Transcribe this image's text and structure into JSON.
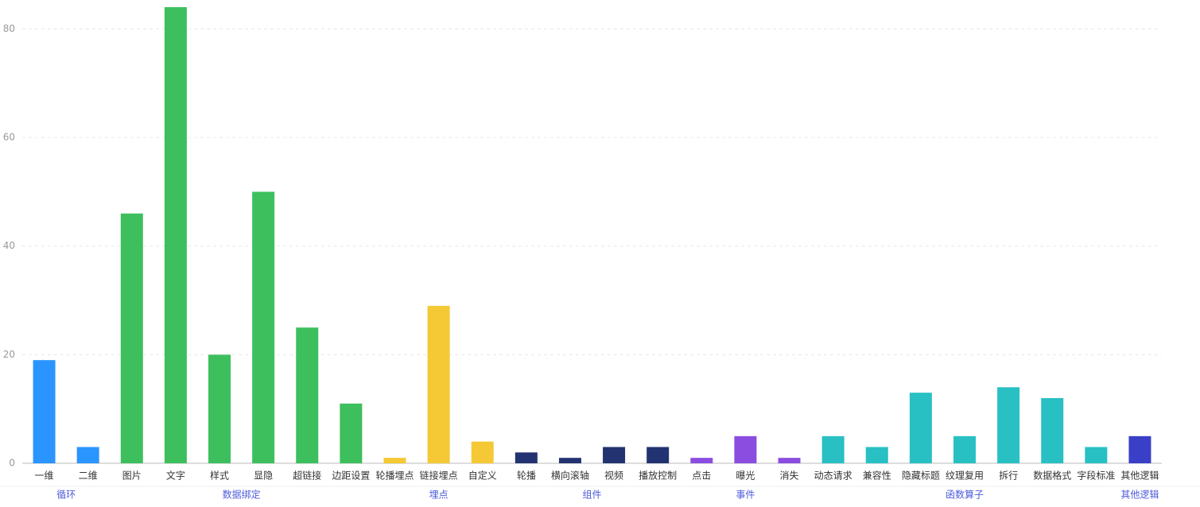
{
  "chart_data": {
    "type": "bar",
    "ylim": [
      0,
      84
    ],
    "yticks": [
      0,
      20,
      40,
      60,
      80
    ],
    "grid": true,
    "groups": [
      {
        "name": "循环",
        "color": "#2b95ff",
        "categories": [
          "一维",
          "二维"
        ],
        "values": [
          19,
          3
        ]
      },
      {
        "name": "数据绑定",
        "color": "#3dbf5e",
        "categories": [
          "图片",
          "文字",
          "样式",
          "显隐",
          "超链接",
          "边距设置"
        ],
        "values": [
          46,
          84,
          20,
          50,
          25,
          11
        ]
      },
      {
        "name": "埋点",
        "color": "#f5c935",
        "categories": [
          "轮播埋点",
          "链接埋点",
          "自定义"
        ],
        "values": [
          1,
          29,
          4
        ]
      },
      {
        "name": "组件",
        "color": "#233270",
        "categories": [
          "轮播",
          "横向滚轴",
          "视频",
          "播放控制"
        ],
        "values": [
          2,
          1,
          3,
          3
        ]
      },
      {
        "name": "事件",
        "color": "#8a4de0",
        "categories": [
          "点击",
          "曝光",
          "消失"
        ],
        "values": [
          1,
          5,
          1
        ]
      },
      {
        "name": "函数算子",
        "color": "#28c0c3",
        "categories": [
          "动态请求",
          "兼容性",
          "隐藏标题",
          "纹理复用",
          "拆行",
          "数据格式",
          "字段标准"
        ],
        "values": [
          5,
          3,
          13,
          5,
          14,
          12,
          3
        ]
      },
      {
        "name": "其他逻辑",
        "color": "#3a3fc7",
        "categories": [
          "其他逻辑"
        ],
        "values": [
          5
        ]
      }
    ]
  }
}
